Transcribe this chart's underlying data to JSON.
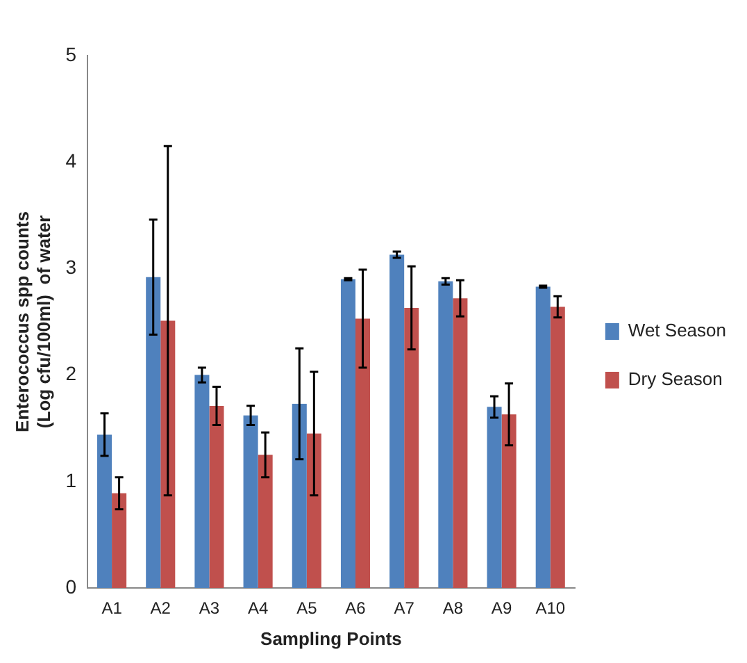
{
  "chart_data": {
    "type": "bar",
    "xlabel": "Sampling Points",
    "ylabel": "Enterococcus spp counts\n(Log cfu/100ml)  of water",
    "categories": [
      "A1",
      "A2",
      "A3",
      "A4",
      "A5",
      "A6",
      "A7",
      "A8",
      "A9",
      "A10"
    ],
    "series": [
      {
        "name": "Wet Season",
        "color": "#4f81bd",
        "values": [
          1.44,
          2.92,
          2.0,
          1.62,
          1.73,
          2.9,
          3.13,
          2.88,
          1.7,
          2.83
        ],
        "errors": [
          0.2,
          0.54,
          0.07,
          0.09,
          0.52,
          0.01,
          0.03,
          0.03,
          0.1,
          0.01
        ]
      },
      {
        "name": "Dry Season",
        "color": "#c0504d",
        "values": [
          0.89,
          2.51,
          1.71,
          1.25,
          1.45,
          2.53,
          2.63,
          2.72,
          1.63,
          2.64
        ],
        "errors": [
          0.15,
          1.64,
          0.18,
          0.21,
          0.58,
          0.46,
          0.39,
          0.17,
          0.29,
          0.1
        ]
      }
    ],
    "ylim": [
      0,
      5
    ],
    "yticks": [
      0,
      1,
      2,
      3,
      4,
      5
    ],
    "grid": false,
    "legend": "right"
  }
}
